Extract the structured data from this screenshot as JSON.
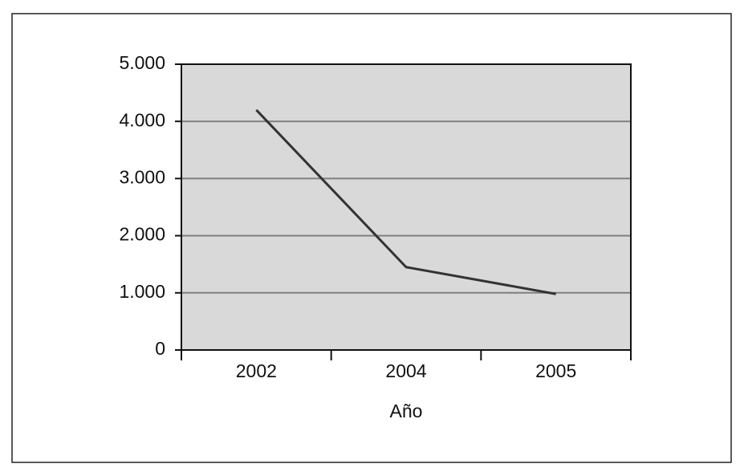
{
  "chart_data": {
    "type": "line",
    "xlabel": "Año",
    "categories": [
      "2002",
      "2004",
      "2005"
    ],
    "values": [
      4200,
      1450,
      980
    ],
    "color": "#333333",
    "ylim": [
      0,
      5000
    ],
    "yticks": [
      0,
      {
        "value": 1000,
        "label": "1.000"
      },
      {
        "value": 2000,
        "label": "2.000"
      },
      {
        "value": 3000,
        "label": "3.000"
      },
      {
        "value": 4000,
        "label": "4.000"
      },
      {
        "value": 5000,
        "label": "5.000"
      }
    ],
    "grid": true
  }
}
